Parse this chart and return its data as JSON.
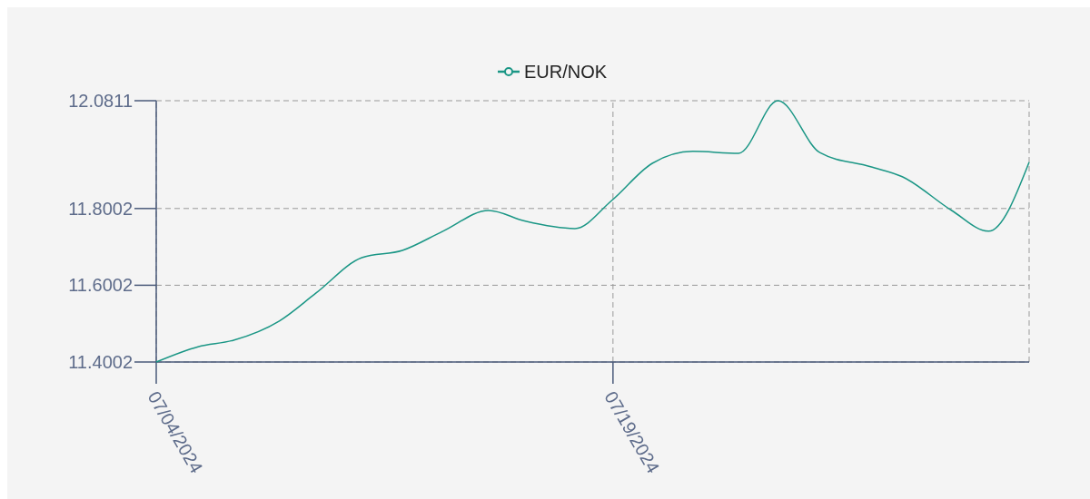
{
  "chart_data": {
    "type": "line",
    "legend": "top",
    "grid": true,
    "x": [
      "2024-07-04",
      "2024-07-05T09:00",
      "2024-07-06T13:00",
      "2024-07-08T01:00",
      "2024-07-09T06:00",
      "2024-07-10T18:00",
      "2024-07-12T02:00",
      "2024-07-13T10:00",
      "2024-07-14T22:00",
      "2024-07-16T03:00",
      "2024-07-17T18:00",
      "2024-07-18T23:00",
      "2024-07-20T07:00",
      "2024-07-21T15:00",
      "2024-07-23T03:00",
      "2024-07-24T10:00",
      "2024-07-25T19:00",
      "2024-07-27T11:00",
      "2024-07-28T12:00",
      "2024-07-30T03:00",
      "2024-07-31T08:00",
      "2024-08-01T16:00"
    ],
    "series": [
      {
        "name": "EUR/NOK",
        "color": "#1a9685",
        "values": [
          11.4002,
          11.44,
          11.457,
          11.507,
          11.58,
          11.672,
          11.691,
          11.741,
          11.795,
          11.767,
          11.748,
          11.821,
          11.918,
          11.949,
          11.944,
          12.0811,
          11.946,
          11.909,
          11.883,
          11.795,
          11.741,
          11.921
        ]
      }
    ],
    "xlim": [
      "2024-07-04",
      "2024-08-01T16:00"
    ],
    "xticks": [
      {
        "value": "2024-07-04",
        "label": "07/04/2024"
      },
      {
        "value": "2024-07-19",
        "label": "07/19/2024"
      }
    ],
    "ylim": [
      11.4002,
      12.0811
    ],
    "yticks": [
      11.4002,
      11.6002,
      11.8002,
      12.0811
    ]
  }
}
